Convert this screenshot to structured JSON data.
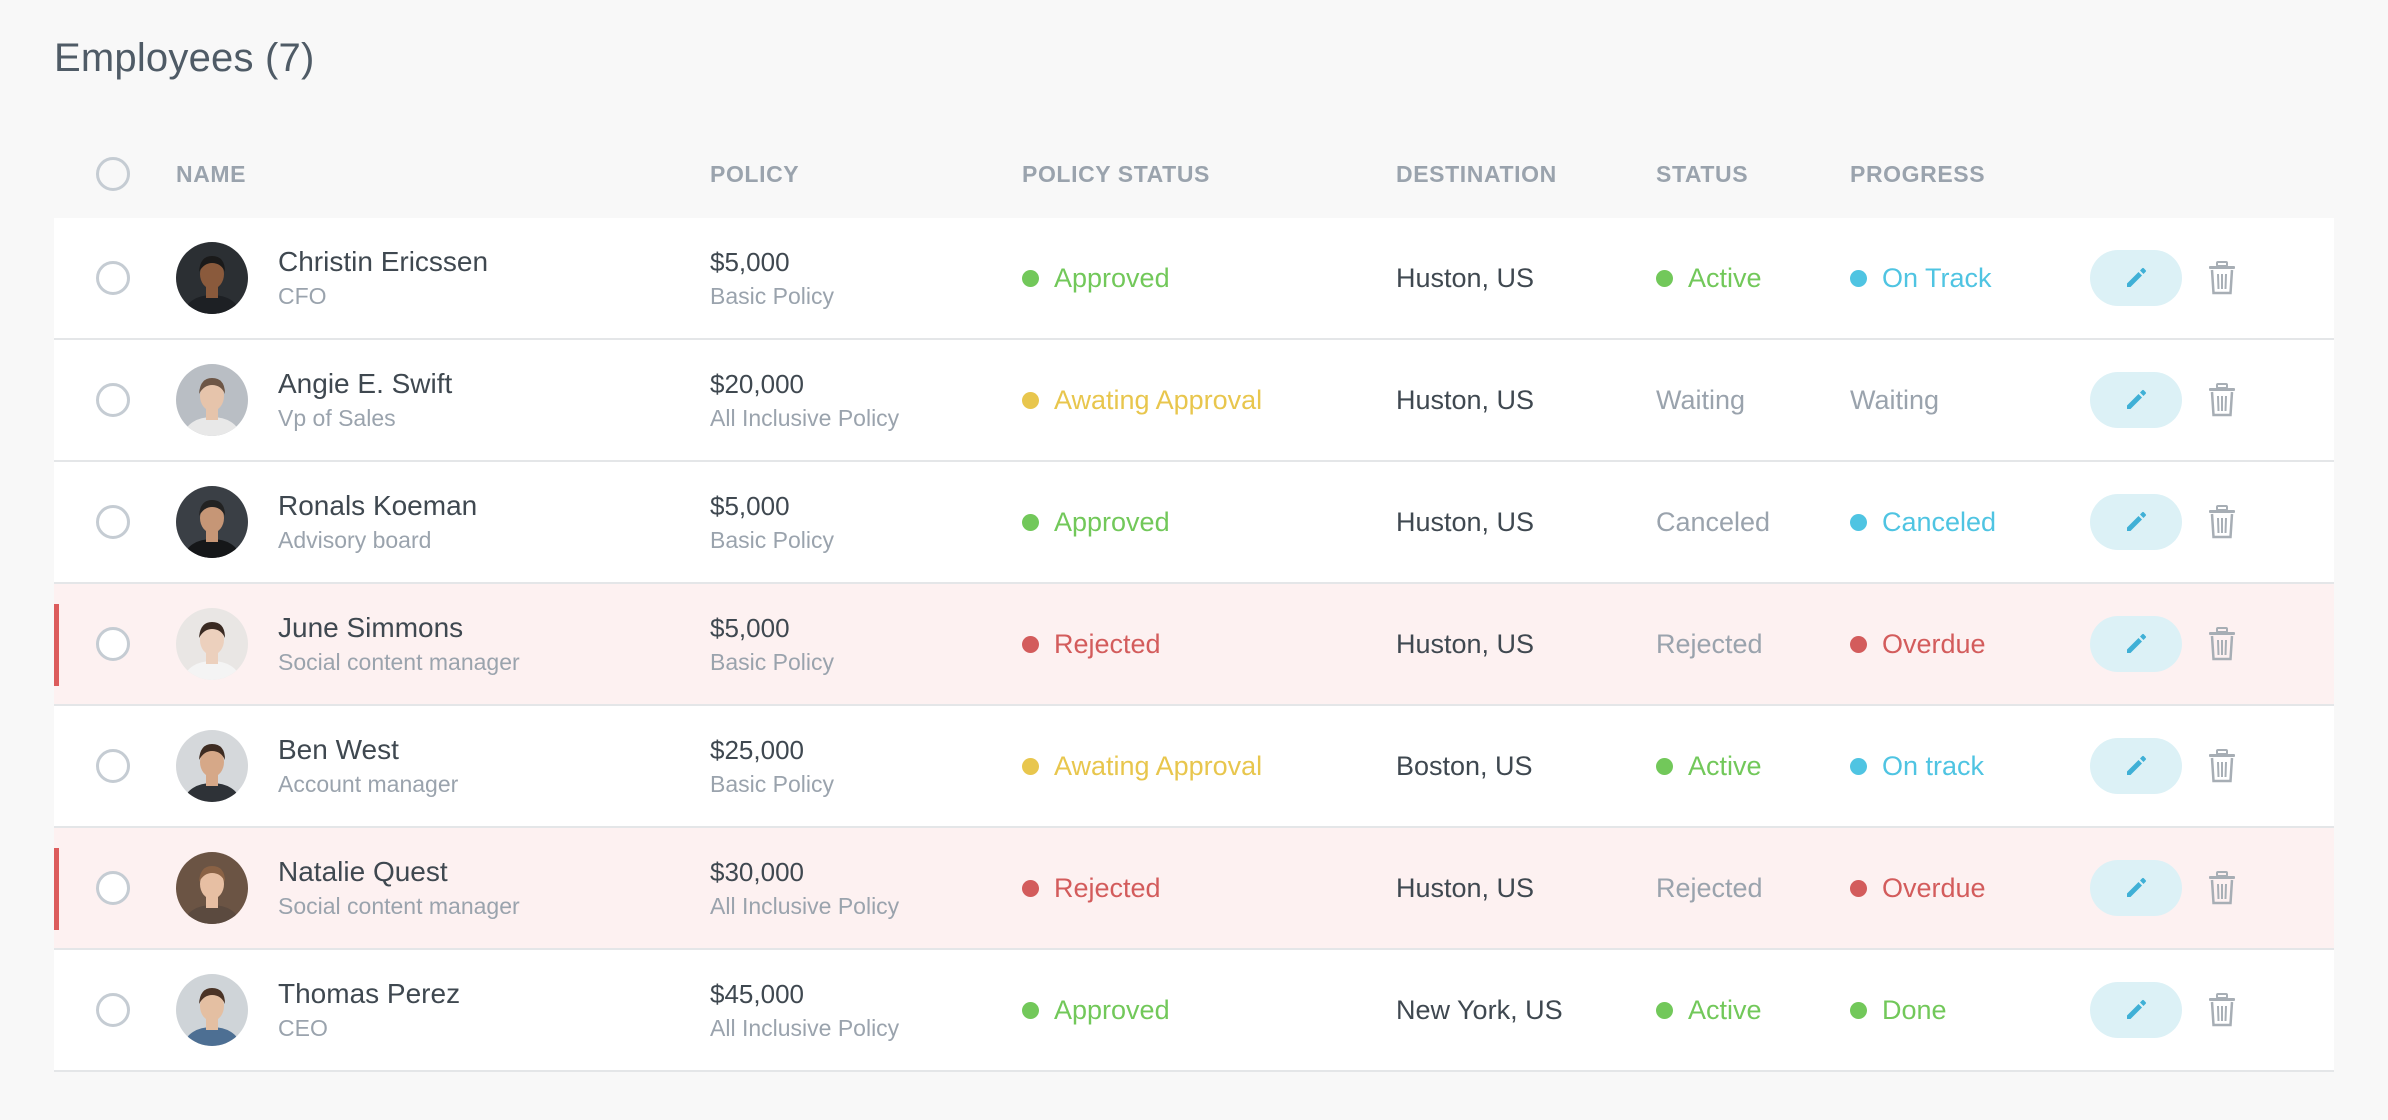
{
  "page": {
    "title": "Employees (7)"
  },
  "table": {
    "headers": {
      "name": "NAME",
      "policy": "POLICY",
      "policy_status": "POLICY STATUS",
      "destination": "DESTINATION",
      "status": "STATUS",
      "progress": "PROGRESS"
    },
    "rows": [
      {
        "name": "Christin Ericssen",
        "role": "CFO",
        "policy_amount": "$5,000",
        "policy_type": "Basic Policy",
        "policy_status": "Approved",
        "policy_status_color": "green",
        "destination": "Huston, US",
        "status": "Active",
        "status_color": "green",
        "progress": "On Track",
        "progress_color": "cyan",
        "flagged": false,
        "avatar": {
          "bg": "#2b2f33",
          "skin": "#8a5a3c",
          "hair": "#1a1a1a",
          "shirt": "#1d2024"
        }
      },
      {
        "name": "Angie E. Swift",
        "role": "Vp of Sales",
        "policy_amount": "$20,000",
        "policy_type": "All Inclusive Policy",
        "policy_status": "Awating Approval",
        "policy_status_color": "yellow",
        "destination": "Huston, US",
        "status": "Waiting",
        "status_color": "none",
        "progress": "Waiting",
        "progress_color": "none",
        "flagged": false,
        "avatar": {
          "bg": "#b9bec4",
          "skin": "#e6c4ab",
          "hair": "#6d5646",
          "shirt": "#e8e8e8"
        }
      },
      {
        "name": "Ronals Koeman",
        "role": "Advisory board",
        "policy_amount": "$5,000",
        "policy_type": "Basic Policy",
        "policy_status": "Approved",
        "policy_status_color": "green",
        "destination": "Huston, US",
        "status": "Canceled",
        "status_color": "none",
        "progress": "Canceled",
        "progress_color": "cyan",
        "flagged": false,
        "avatar": {
          "bg": "#3a3f45",
          "skin": "#c69676",
          "hair": "#222222",
          "shirt": "#151719"
        }
      },
      {
        "name": "June Simmons",
        "role": "Social content manager",
        "policy_amount": "$5,000",
        "policy_type": "Basic Policy",
        "policy_status": "Rejected",
        "policy_status_color": "red",
        "destination": "Huston, US",
        "status": "Rejected",
        "status_color": "none",
        "progress": "Overdue",
        "progress_color": "red",
        "flagged": true,
        "avatar": {
          "bg": "#e9e6e4",
          "skin": "#ecd0bd",
          "hair": "#3a2a22",
          "shirt": "#f4f4f4"
        }
      },
      {
        "name": "Ben West",
        "role": "Account manager",
        "policy_amount": "$25,000",
        "policy_type": "Basic Policy",
        "policy_status": "Awating Approval",
        "policy_status_color": "yellow",
        "destination": "Boston, US",
        "status": "Active",
        "status_color": "green",
        "progress": "On track",
        "progress_color": "cyan",
        "flagged": false,
        "avatar": {
          "bg": "#d5d8db",
          "skin": "#d6a888",
          "hair": "#3e2c22",
          "shirt": "#2e3237"
        }
      },
      {
        "name": "Natalie Quest",
        "role": "Social content manager",
        "policy_amount": "$30,000",
        "policy_type": "All Inclusive Policy",
        "policy_status": "Rejected",
        "policy_status_color": "red",
        "destination": "Huston, US",
        "status": "Rejected",
        "status_color": "none",
        "progress": "Overdue",
        "progress_color": "red",
        "flagged": true,
        "avatar": {
          "bg": "#6b5444",
          "skin": "#e7bfa3",
          "hair": "#8a6245",
          "shirt": "#5b4a3f"
        }
      },
      {
        "name": "Thomas Perez",
        "role": "CEO",
        "policy_amount": "$45,000",
        "policy_type": "All Inclusive Policy",
        "policy_status": "Approved",
        "policy_status_color": "green",
        "destination": "New York, US",
        "status": "Active",
        "status_color": "green",
        "progress": "Done",
        "progress_color": "green",
        "flagged": false,
        "avatar": {
          "bg": "#cfd4d8",
          "skin": "#e4bfa2",
          "hair": "#4a3326",
          "shirt": "#4d6f93"
        }
      }
    ]
  },
  "icons": {
    "edit": "pencil-icon",
    "delete": "trash-icon"
  },
  "colors": {
    "accent_cyan": "#4fc4e2",
    "approved_green": "#72c85a",
    "awaiting_yellow": "#e8c64d",
    "rejected_red": "#d35c5c",
    "flag_bg": "#fdf1f1"
  }
}
